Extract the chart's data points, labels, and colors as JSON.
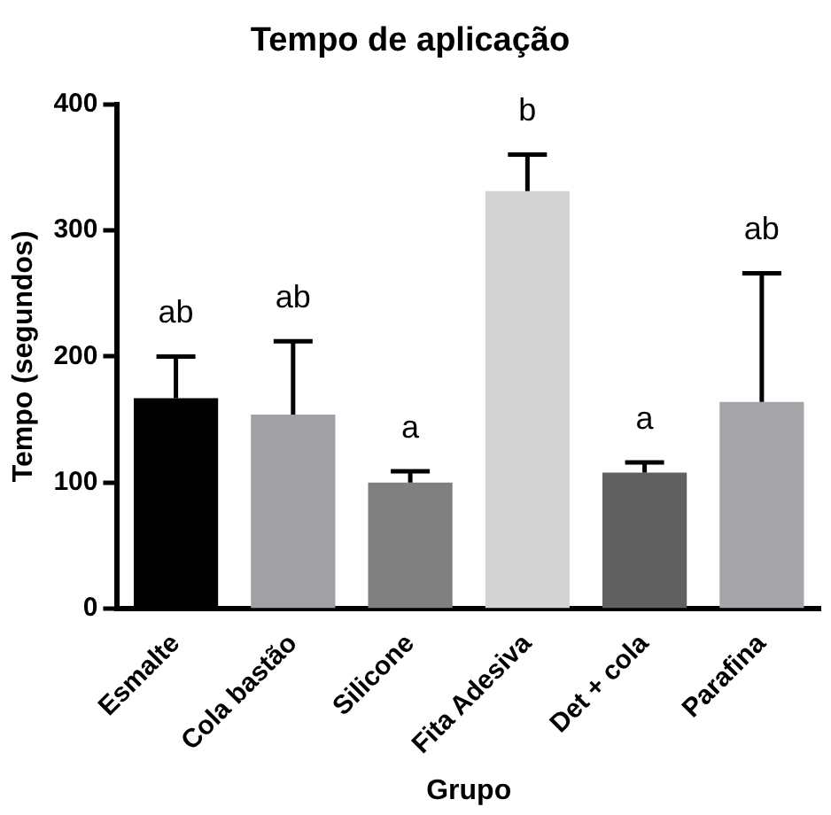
{
  "chart_data": {
    "type": "bar",
    "title": "Tempo de aplicação",
    "xlabel": "Grupo",
    "ylabel": "Tempo (segundos)",
    "categories": [
      "Esmalte",
      "Cola bastão",
      "Silicone",
      "Fita Adesiva",
      "Det + cola",
      "Parafina"
    ],
    "values": [
      167,
      154,
      100,
      331,
      108,
      164
    ],
    "colors": [
      "#000000",
      "#a0a0a5",
      "#808080",
      "#d3d3d3",
      "#606060",
      "#a5a5aa"
    ],
    "errors": [
      [
        167,
        200
      ],
      [
        154,
        212
      ],
      [
        100,
        109
      ],
      [
        331,
        360
      ],
      [
        108,
        116
      ],
      [
        164,
        266
      ]
    ],
    "ylim": [
      0,
      400
    ],
    "yticks": [
      0,
      100,
      200,
      300,
      400
    ],
    "grid": false,
    "legend": false,
    "annotations": [
      "ab",
      "ab",
      "a",
      "b",
      "a",
      "ab"
    ]
  }
}
